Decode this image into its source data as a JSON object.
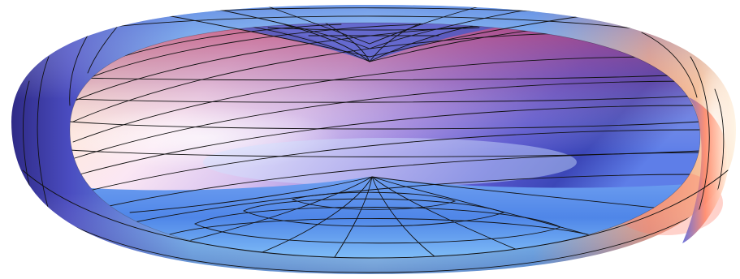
{
  "figure": {
    "subject": "3d-surface-plot",
    "surface": "cutaway-torus-with-mesh",
    "background_color": "#ffffff",
    "mesh_line_color": "#111111",
    "palette": {
      "deep_blue": "#3a2f9a",
      "mid_blue": "#4a78e6",
      "light_blue": "#7fc3f6",
      "pale_blue": "#dcefff",
      "lavender": "#c9b8ee",
      "purple": "#6a3ea3",
      "magenta": "#b03a7a",
      "salmon": "#f0806c",
      "cream": "#fff1e0"
    }
  }
}
